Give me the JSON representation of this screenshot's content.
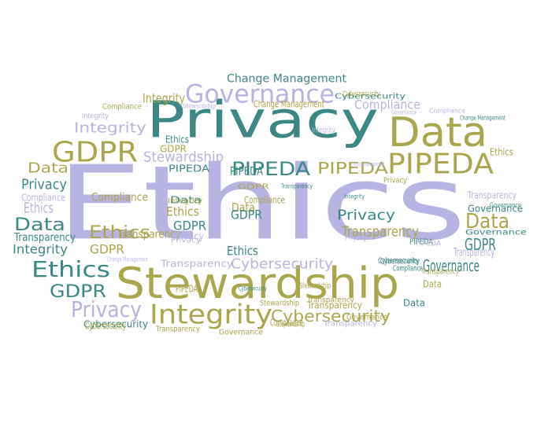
{
  "palette": {
    "lavender": "#b8b4e2",
    "olive": "#a9a64e",
    "teal": "#3c8783"
  },
  "words": [
    {
      "text": "Ethics",
      "color": "lavender"
    },
    {
      "text": "Privacy",
      "color": "teal"
    },
    {
      "text": "Stewardship",
      "color": "olive"
    },
    {
      "text": "Data",
      "color": "olive"
    },
    {
      "text": "Governance",
      "color": "lavender"
    },
    {
      "text": "GDPR",
      "color": "olive"
    },
    {
      "text": "PIPEDA",
      "color": "olive"
    },
    {
      "text": "Integrity",
      "color": "olive"
    },
    {
      "text": "Change Management",
      "color": "teal"
    },
    {
      "text": "Integrity",
      "color": "lavender"
    },
    {
      "text": "Integrity",
      "color": "olive"
    },
    {
      "text": "Compliance",
      "color": "lavender"
    },
    {
      "text": "Stewardship",
      "color": "lavender"
    },
    {
      "text": "GDPR",
      "color": "olive"
    },
    {
      "text": "Ethics",
      "color": "teal"
    },
    {
      "text": "Data",
      "color": "olive"
    },
    {
      "text": "Privacy",
      "color": "teal"
    },
    {
      "text": "Data",
      "color": "teal"
    },
    {
      "text": "Ethics",
      "color": "lavender"
    },
    {
      "text": "Transparency",
      "color": "teal"
    },
    {
      "text": "Integrity",
      "color": "teal"
    },
    {
      "text": "Ethics",
      "color": "teal"
    },
    {
      "text": "GDPR",
      "color": "teal"
    },
    {
      "text": "Privacy",
      "color": "lavender"
    },
    {
      "text": "Cybersecurity",
      "color": "teal"
    },
    {
      "text": "PIPEDA",
      "color": "teal"
    },
    {
      "text": "PIPEDA",
      "color": "teal"
    },
    {
      "text": "PIPEDA",
      "color": "olive"
    },
    {
      "text": "Compliance",
      "color": "olive"
    },
    {
      "text": "Ethics",
      "color": "olive"
    },
    {
      "text": "GDPR",
      "color": "olive"
    },
    {
      "text": "Transparency",
      "color": "olive"
    },
    {
      "text": "Data",
      "color": "teal"
    },
    {
      "text": "Privacy",
      "color": "teal"
    },
    {
      "text": "Transparency",
      "color": "olive"
    },
    {
      "text": "Cybersecurity",
      "color": "lavender"
    },
    {
      "text": "Data",
      "color": "olive"
    },
    {
      "text": "GDPR",
      "color": "teal"
    },
    {
      "text": "Governance",
      "color": "teal"
    },
    {
      "text": "Transparency",
      "color": "lavender"
    },
    {
      "text": "Cybersecurity",
      "color": "olive"
    },
    {
      "text": "Compliance",
      "color": "olive"
    },
    {
      "text": "Change Management",
      "color": "olive"
    },
    {
      "text": "Compliance",
      "color": "olive"
    },
    {
      "text": "Integrity",
      "color": "lavender"
    },
    {
      "text": "Compliance",
      "color": "lavender"
    },
    {
      "text": "Ethics",
      "color": "olive"
    },
    {
      "text": "GDPR",
      "color": "teal"
    },
    {
      "text": "Privacy",
      "color": "lavender"
    },
    {
      "text": "Data",
      "color": "olive"
    },
    {
      "text": "Ethics",
      "color": "teal"
    },
    {
      "text": "GDPR",
      "color": "teal"
    },
    {
      "text": "PIPEDA",
      "color": "teal"
    },
    {
      "text": "Governance",
      "color": "teal"
    },
    {
      "text": "Transparency",
      "color": "lavender"
    },
    {
      "text": "Stewardship",
      "color": "olive"
    },
    {
      "text": "Transparency",
      "color": "olive"
    },
    {
      "text": "Cybersecurity",
      "color": "olive"
    },
    {
      "text": "Cybersecurity",
      "color": "teal"
    },
    {
      "text": "Data",
      "color": "teal"
    },
    {
      "text": "Transparency",
      "color": "lavender"
    },
    {
      "text": "Governance",
      "color": "teal"
    },
    {
      "text": "Transparency",
      "color": "lavender"
    },
    {
      "text": "Transparency",
      "color": "olive"
    },
    {
      "text": "PIPEDA",
      "color": "olive"
    },
    {
      "text": "Compliance",
      "color": "olive"
    },
    {
      "text": "Integrity",
      "color": "olive"
    },
    {
      "text": "PIPEDA",
      "color": "teal"
    },
    {
      "text": "Cybersecurity",
      "color": "teal"
    },
    {
      "text": "Transparency",
      "color": "olive"
    },
    {
      "text": "Governance",
      "color": "olive"
    },
    {
      "text": "Stewardship",
      "color": "lavender"
    },
    {
      "text": "Change Management",
      "color": "teal"
    },
    {
      "text": "Cybersecurity",
      "color": "teal"
    },
    {
      "text": "Cybersecurity",
      "color": "olive"
    },
    {
      "text": "Privacy",
      "color": "lavender"
    },
    {
      "text": "GDPR",
      "color": "olive"
    },
    {
      "text": "Governance",
      "color": "lavender"
    },
    {
      "text": "Compliance",
      "color": "lavender"
    },
    {
      "text": "Change Management",
      "color": "lavender"
    },
    {
      "text": "Cybersecurity",
      "color": "teal"
    },
    {
      "text": "Integrity",
      "color": "teal"
    },
    {
      "text": "Stewardship",
      "color": "olive"
    },
    {
      "text": "Transparency",
      "color": "olive"
    },
    {
      "text": "Governance",
      "color": "olive"
    },
    {
      "text": "Stewardship",
      "color": "olive"
    },
    {
      "text": "Privacy",
      "color": "olive"
    },
    {
      "text": "Compliance",
      "color": "teal"
    },
    {
      "text": "PIPEDA",
      "color": "lavender"
    },
    {
      "text": "Governance",
      "color": "teal"
    },
    {
      "text": "Ethics",
      "color": "olive"
    },
    {
      "text": "Privacy",
      "color": "lavender"
    },
    {
      "text": "Transparency",
      "color": "teal"
    },
    {
      "text": "Integrity",
      "color": "lavender"
    },
    {
      "text": "Data",
      "color": "olive"
    },
    {
      "text": "Change Management",
      "color": "lavender"
    }
  ]
}
